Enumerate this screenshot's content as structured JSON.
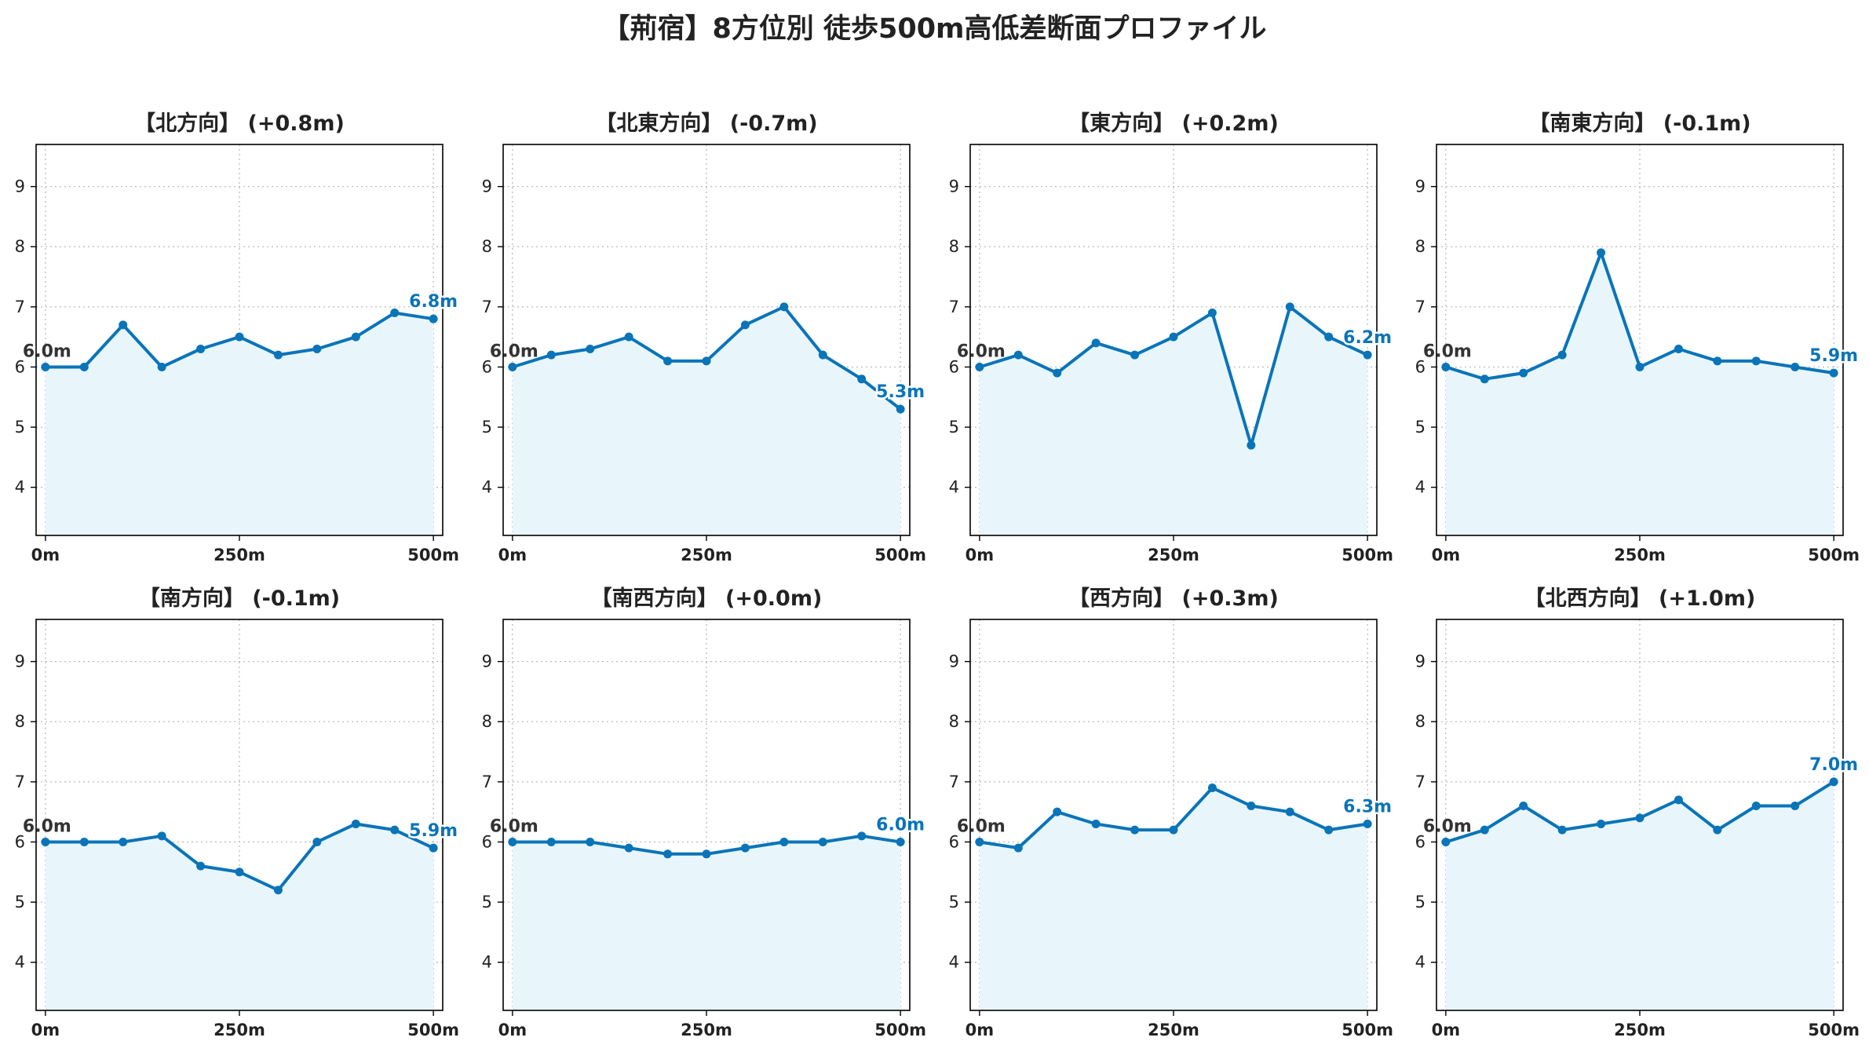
{
  "title": "【荊宿】8方位別 徒歩500m高低差断面プロファイル",
  "colors": {
    "line": "#0a74b8",
    "fill": "#e8f6fc",
    "grid": "#bbbbbb",
    "axis": "#000000",
    "label": "#333333"
  },
  "chart_data": [
    {
      "type": "area",
      "title": "【北方向】 (+0.8m)",
      "x": [
        0,
        50,
        100,
        150,
        200,
        250,
        300,
        350,
        400,
        450,
        500
      ],
      "y": [
        6.0,
        6.0,
        6.7,
        6.0,
        6.3,
        6.5,
        6.2,
        6.3,
        6.5,
        6.9,
        6.8
      ],
      "xticks": [
        "0m",
        "250m",
        "500m"
      ],
      "yticks": [
        4,
        5,
        6,
        7,
        8,
        9
      ],
      "ylim": [
        3.2,
        9.7
      ],
      "xlim": [
        -12,
        512
      ],
      "start_label": "6.0m",
      "end_label": "6.8m",
      "grid": true
    },
    {
      "type": "area",
      "title": "【北東方向】 (-0.7m)",
      "x": [
        0,
        50,
        100,
        150,
        200,
        250,
        300,
        350,
        400,
        450,
        500
      ],
      "y": [
        6.0,
        6.2,
        6.3,
        6.5,
        6.1,
        6.1,
        6.7,
        7.0,
        6.2,
        5.8,
        5.3
      ],
      "xticks": [
        "0m",
        "250m",
        "500m"
      ],
      "yticks": [
        4,
        5,
        6,
        7,
        8,
        9
      ],
      "ylim": [
        3.2,
        9.7
      ],
      "xlim": [
        -12,
        512
      ],
      "start_label": "6.0m",
      "end_label": "5.3m",
      "grid": true
    },
    {
      "type": "area",
      "title": "【東方向】 (+0.2m)",
      "x": [
        0,
        50,
        100,
        150,
        200,
        250,
        300,
        350,
        400,
        450,
        500
      ],
      "y": [
        6.0,
        6.2,
        5.9,
        6.4,
        6.2,
        6.5,
        6.9,
        4.7,
        7.0,
        6.5,
        6.2
      ],
      "xticks": [
        "0m",
        "250m",
        "500m"
      ],
      "yticks": [
        4,
        5,
        6,
        7,
        8,
        9
      ],
      "ylim": [
        3.2,
        9.7
      ],
      "xlim": [
        -12,
        512
      ],
      "start_label": "6.0m",
      "end_label": "6.2m",
      "grid": true
    },
    {
      "type": "area",
      "title": "【南東方向】 (-0.1m)",
      "x": [
        0,
        50,
        100,
        150,
        200,
        250,
        300,
        350,
        400,
        450,
        500
      ],
      "y": [
        6.0,
        5.8,
        5.9,
        6.2,
        7.9,
        6.0,
        6.3,
        6.1,
        6.1,
        6.0,
        5.9
      ],
      "xticks": [
        "0m",
        "250m",
        "500m"
      ],
      "yticks": [
        4,
        5,
        6,
        7,
        8,
        9
      ],
      "ylim": [
        3.2,
        9.7
      ],
      "xlim": [
        -12,
        512
      ],
      "start_label": "6.0m",
      "end_label": "5.9m",
      "grid": true
    },
    {
      "type": "area",
      "title": "【南方向】 (-0.1m)",
      "x": [
        0,
        50,
        100,
        150,
        200,
        250,
        300,
        350,
        400,
        450,
        500
      ],
      "y": [
        6.0,
        6.0,
        6.0,
        6.1,
        5.6,
        5.5,
        5.2,
        6.0,
        6.3,
        6.2,
        5.9
      ],
      "xticks": [
        "0m",
        "250m",
        "500m"
      ],
      "yticks": [
        4,
        5,
        6,
        7,
        8,
        9
      ],
      "ylim": [
        3.2,
        9.7
      ],
      "xlim": [
        -12,
        512
      ],
      "start_label": "6.0m",
      "end_label": "5.9m",
      "grid": true
    },
    {
      "type": "area",
      "title": "【南西方向】 (+0.0m)",
      "x": [
        0,
        50,
        100,
        150,
        200,
        250,
        300,
        350,
        400,
        450,
        500
      ],
      "y": [
        6.0,
        6.0,
        6.0,
        5.9,
        5.8,
        5.8,
        5.9,
        6.0,
        6.0,
        6.1,
        6.0
      ],
      "xticks": [
        "0m",
        "250m",
        "500m"
      ],
      "yticks": [
        4,
        5,
        6,
        7,
        8,
        9
      ],
      "ylim": [
        3.2,
        9.7
      ],
      "xlim": [
        -12,
        512
      ],
      "start_label": "6.0m",
      "end_label": "6.0m",
      "grid": true
    },
    {
      "type": "area",
      "title": "【西方向】 (+0.3m)",
      "x": [
        0,
        50,
        100,
        150,
        200,
        250,
        300,
        350,
        400,
        450,
        500
      ],
      "y": [
        6.0,
        5.9,
        6.5,
        6.3,
        6.2,
        6.2,
        6.9,
        6.6,
        6.5,
        6.2,
        6.3
      ],
      "xticks": [
        "0m",
        "250m",
        "500m"
      ],
      "yticks": [
        4,
        5,
        6,
        7,
        8,
        9
      ],
      "ylim": [
        3.2,
        9.7
      ],
      "xlim": [
        -12,
        512
      ],
      "start_label": "6.0m",
      "end_label": "6.3m",
      "grid": true
    },
    {
      "type": "area",
      "title": "【北西方向】 (+1.0m)",
      "x": [
        0,
        50,
        100,
        150,
        200,
        250,
        300,
        350,
        400,
        450,
        500
      ],
      "y": [
        6.0,
        6.2,
        6.6,
        6.2,
        6.3,
        6.4,
        6.7,
        6.2,
        6.6,
        6.6,
        7.0
      ],
      "xticks": [
        "0m",
        "250m",
        "500m"
      ],
      "yticks": [
        4,
        5,
        6,
        7,
        8,
        9
      ],
      "ylim": [
        3.2,
        9.7
      ],
      "xlim": [
        -12,
        512
      ],
      "start_label": "6.0m",
      "end_label": "7.0m",
      "grid": true
    }
  ]
}
